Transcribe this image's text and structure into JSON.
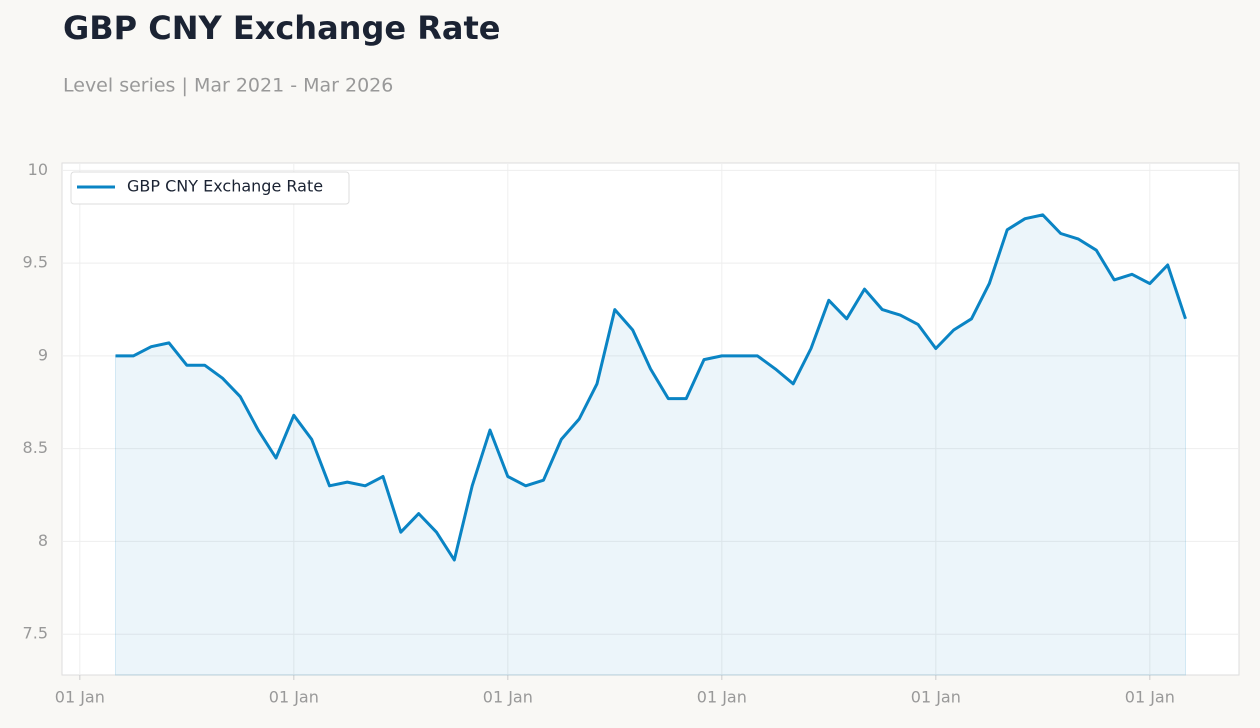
{
  "chart_data": {
    "type": "line",
    "title": "GBP CNY Exchange Rate",
    "subtitle": "Level series | Mar 2021 - Mar 2026",
    "x": [
      "2021-03",
      "2021-04",
      "2021-05",
      "2021-06",
      "2021-07",
      "2021-08",
      "2021-09",
      "2021-10",
      "2021-11",
      "2021-12",
      "2022-01",
      "2022-02",
      "2022-03",
      "2022-04",
      "2022-05",
      "2022-06",
      "2022-07",
      "2022-08",
      "2022-09",
      "2022-10",
      "2022-11",
      "2022-12",
      "2023-01",
      "2023-02",
      "2023-03",
      "2023-04",
      "2023-05",
      "2023-06",
      "2023-07",
      "2023-08",
      "2023-09",
      "2023-10",
      "2023-11",
      "2023-12",
      "2024-01",
      "2024-02",
      "2024-03",
      "2024-04",
      "2024-05",
      "2024-06",
      "2024-07",
      "2024-08",
      "2024-09",
      "2024-10",
      "2024-11",
      "2024-12",
      "2025-01",
      "2025-02",
      "2025-03",
      "2025-04",
      "2025-05",
      "2025-06",
      "2025-07",
      "2025-08",
      "2025-09",
      "2025-10",
      "2025-11",
      "2025-12",
      "2026-01",
      "2026-02",
      "2026-03"
    ],
    "series": [
      {
        "name": "GBP CNY Exchange Rate",
        "color": "#0a84c4",
        "values": [
          9.0,
          9.0,
          9.05,
          9.07,
          8.95,
          8.95,
          8.88,
          8.78,
          8.6,
          8.45,
          8.68,
          8.55,
          8.3,
          8.32,
          8.3,
          8.35,
          8.05,
          8.15,
          8.05,
          7.9,
          8.3,
          8.6,
          8.35,
          8.3,
          8.33,
          8.55,
          8.66,
          8.85,
          9.25,
          9.14,
          8.93,
          8.77,
          8.77,
          8.98,
          9.0,
          9.0,
          9.0,
          8.93,
          8.85,
          9.04,
          9.3,
          9.2,
          9.36,
          9.25,
          9.22,
          9.17,
          9.04,
          9.14,
          9.2,
          9.39,
          9.68,
          9.74,
          9.76,
          9.66,
          9.63,
          9.57,
          9.41,
          9.44,
          9.39,
          9.49,
          9.2
        ]
      }
    ],
    "xlim": [
      "2020-12",
      "2026-06"
    ],
    "xticks": [
      {
        "value": "2021-01",
        "label": "01 Jan"
      },
      {
        "value": "2022-01",
        "label": "01 Jan"
      },
      {
        "value": "2023-01",
        "label": "01 Jan"
      },
      {
        "value": "2024-01",
        "label": "01 Jan"
      },
      {
        "value": "2025-01",
        "label": "01 Jan"
      },
      {
        "value": "2026-01",
        "label": "01 Jan"
      }
    ],
    "ylim": [
      7.28,
      10.04
    ],
    "yticks": [
      7.5,
      8,
      8.5,
      9,
      9.5,
      10
    ],
    "grid": true,
    "legend": "upper left"
  }
}
